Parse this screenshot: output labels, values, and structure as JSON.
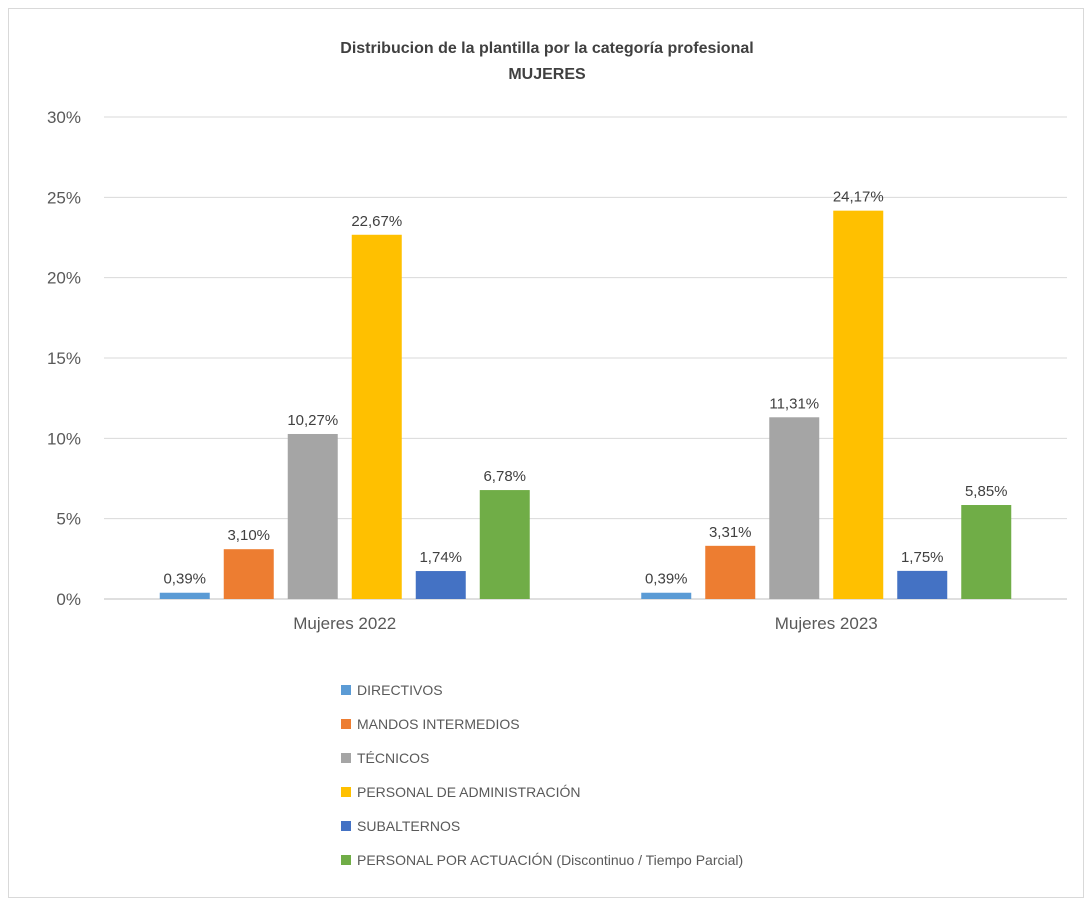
{
  "chart_data": {
    "type": "bar",
    "title": "Distribucion de la plantilla por la categoría profesional",
    "subtitle": "MUJERES",
    "categories": [
      "Mujeres 2022",
      "Mujeres 2023"
    ],
    "ylim": [
      0,
      30
    ],
    "yticks": [
      0,
      5,
      10,
      15,
      20,
      25,
      30
    ],
    "ytick_labels": [
      "0%",
      "5%",
      "10%",
      "15%",
      "20%",
      "25%",
      "30%"
    ],
    "grid": true,
    "legend_position": "bottom",
    "series": [
      {
        "name": "DIRECTIVOS",
        "color": "#5B9BD5",
        "values": [
          0.39,
          0.39
        ],
        "labels": [
          "0,39%",
          "0,39%"
        ]
      },
      {
        "name": "MANDOS INTERMEDIOS",
        "color": "#ED7D31",
        "values": [
          3.1,
          3.31
        ],
        "labels": [
          "3,10%",
          "3,31%"
        ]
      },
      {
        "name": "TÉCNICOS",
        "color": "#A5A5A5",
        "values": [
          10.27,
          11.31
        ],
        "labels": [
          "10,27%",
          "11,31%"
        ]
      },
      {
        "name": "PERSONAL DE ADMINISTRACIÓN",
        "color": "#FFC000",
        "values": [
          22.67,
          24.17
        ],
        "labels": [
          "22,67%",
          "24,17%"
        ]
      },
      {
        "name": "SUBALTERNOS",
        "color": "#4472C4",
        "values": [
          1.74,
          1.75
        ],
        "labels": [
          "1,74%",
          "1,75%"
        ]
      },
      {
        "name": "PERSONAL POR ACTUACIÓN (Discontinuo / Tiempo Parcial)",
        "color": "#70AD47",
        "values": [
          6.78,
          5.85
        ],
        "labels": [
          "6,78%",
          "5,85%"
        ]
      }
    ]
  }
}
